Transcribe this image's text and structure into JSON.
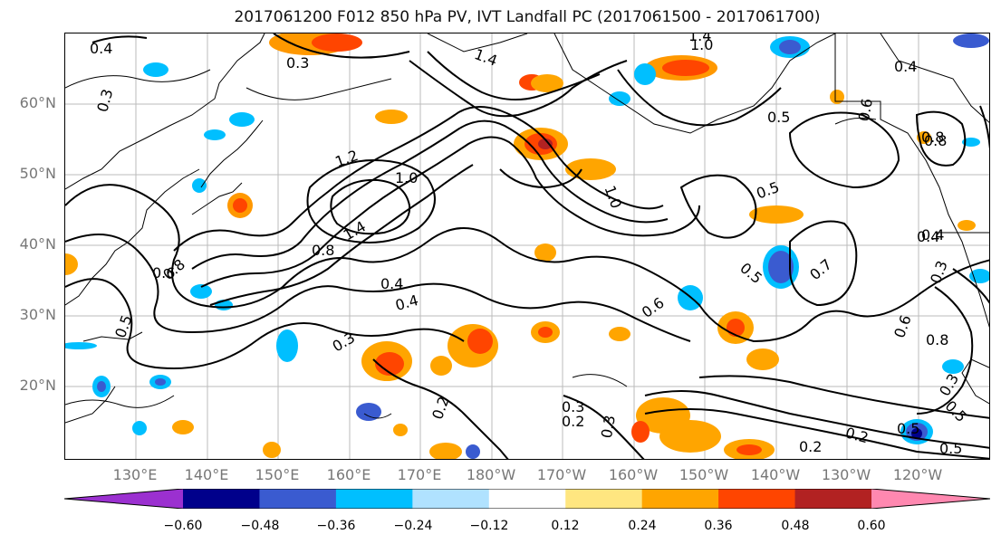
{
  "title": "2017061200 F012 850 hPa PV, IVT Landfall PC (2017061500 - 2017061700)",
  "lat_labels": [
    "60°N",
    "50°N",
    "40°N",
    "30°N",
    "20°N"
  ],
  "lon_labels": [
    "130°E",
    "140°E",
    "150°E",
    "160°E",
    "170°E",
    "180°W",
    "170°W",
    "160°W",
    "150°W",
    "140°W",
    "130°W",
    "120°W"
  ],
  "colorbar": {
    "ticks": [
      "−0.60",
      "−0.48",
      "−0.36",
      "−0.24",
      "−0.12",
      "0.12",
      "0.24",
      "0.36",
      "0.48",
      "0.60"
    ],
    "colors": [
      "#9b30d0",
      "#00008b",
      "#3a5bd0",
      "#00bfff",
      "#b0e2ff",
      "#ffffff",
      "#ffe680",
      "#ffa500",
      "#ff4500",
      "#b22222",
      "#ff88b0"
    ]
  },
  "contour_labels": [
    "0.4",
    "0.3",
    "0.3",
    "1.0",
    "1.4",
    "1.2",
    "1.4",
    "1.0",
    "0.4",
    "0.5",
    "0.6",
    "0.8",
    "0.5",
    "0.8",
    "1.0",
    "1.4",
    "0.8",
    "0.6",
    "0.4",
    "0.4",
    "0.3",
    "0.2",
    "0.3",
    "0.2",
    "0.3",
    "0.5",
    "0.7",
    "0.8",
    "0.6",
    "0.5",
    "0.3",
    "0.2",
    "0.2",
    "0.5",
    "0.8",
    "0.4",
    "0.5",
    "0.6",
    "0.4",
    "0.3",
    "0.5"
  ]
}
